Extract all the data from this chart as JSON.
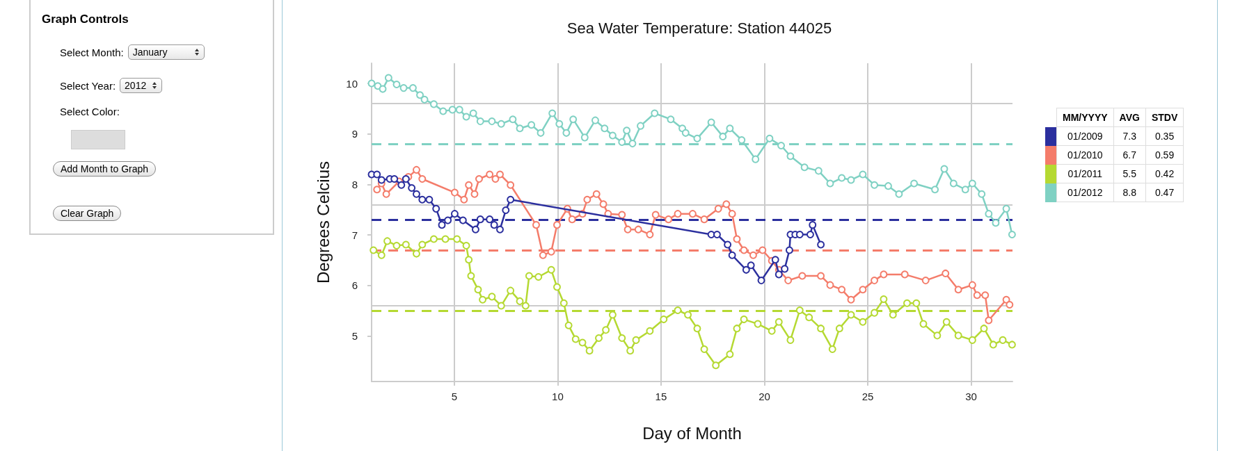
{
  "chart_data": [
    {
      "type": "line",
      "title": "Sea Water Temperature: Station 44025",
      "xlabel": "Day of Month",
      "ylabel": "Degrees Celcius",
      "legend_title": "MM/YYYY",
      "xlim": [
        1,
        32
      ],
      "xticks": [
        5,
        10,
        15,
        20,
        25,
        30
      ],
      "ylim": [
        4.1,
        10.4
      ],
      "yticks": [
        5,
        6,
        7,
        8,
        9,
        10
      ],
      "grid": "x",
      "legend": "right",
      "marker": "circle",
      "line_style": "solid",
      "series": [
        {
          "name": "01/2009",
          "color": "#2b2f9e",
          "x": [
            1.0,
            1.26,
            1.48,
            1.88,
            2.1,
            2.44,
            2.66,
            2.94,
            3.17,
            3.45,
            3.79,
            4.12,
            4.4,
            4.69,
            5.02,
            5.42,
            6.03,
            6.26,
            6.71,
            6.93,
            7.21,
            7.49,
            7.72,
            17.43,
            17.71,
            18.22,
            18.44,
            19.12,
            19.35,
            19.85,
            20.53,
            20.7,
            20.98,
            21.21,
            21.26,
            21.49,
            21.71,
            22.22,
            22.33,
            22.73
          ],
          "values": [
            8.2,
            8.2,
            8.09,
            8.11,
            8.11,
            7.99,
            8.11,
            7.93,
            7.81,
            7.7,
            7.7,
            7.52,
            7.2,
            7.29,
            7.42,
            7.29,
            7.11,
            7.31,
            7.31,
            7.2,
            7.11,
            7.49,
            7.7,
            7.01,
            7.01,
            6.81,
            6.6,
            6.31,
            6.4,
            6.1,
            6.51,
            6.22,
            6.33,
            6.7,
            7.01,
            7.01,
            7.01,
            7.01,
            7.2,
            6.81
          ]
        },
        {
          "name": "01/2010",
          "color": "#f47c6a",
          "x": [
            1.26,
            1.48,
            1.71,
            2.33,
            2.78,
            3.17,
            3.45,
            5.02,
            5.47,
            5.7,
            5.98,
            6.2,
            6.71,
            6.99,
            7.21,
            7.72,
            8.96,
            9.29,
            9.69,
            9.97,
            10.47,
            10.7,
            11.2,
            11.43,
            11.88,
            12.21,
            12.44,
            13.11,
            13.39,
            13.9,
            14.46,
            14.74,
            15.36,
            15.81,
            16.53,
            17.09,
            17.77,
            18.16,
            18.44,
            18.67,
            19.01,
            19.46,
            19.91,
            20.36,
            20.7,
            21.15,
            21.83,
            22.73,
            23.18,
            23.74,
            24.19,
            24.76,
            25.32,
            25.77,
            26.79,
            27.8,
            28.76,
            29.38,
            30.06,
            30.29,
            30.68,
            30.85,
            31.7,
            31.86
          ],
          "values": [
            7.9,
            8.02,
            7.81,
            8.06,
            8.15,
            8.29,
            8.11,
            7.84,
            7.7,
            7.99,
            7.81,
            8.11,
            8.2,
            8.11,
            8.2,
            7.99,
            7.2,
            6.6,
            6.67,
            7.2,
            7.52,
            7.31,
            7.42,
            7.7,
            7.81,
            7.61,
            7.42,
            7.4,
            7.11,
            7.11,
            7.01,
            7.4,
            7.31,
            7.42,
            7.42,
            7.31,
            7.52,
            7.61,
            7.42,
            6.92,
            6.7,
            6.6,
            6.7,
            6.49,
            6.31,
            6.1,
            6.19,
            6.19,
            6.01,
            5.92,
            5.72,
            5.92,
            6.1,
            6.22,
            6.22,
            6.1,
            6.24,
            5.92,
            6.01,
            5.81,
            5.81,
            5.31,
            5.72,
            5.62
          ]
        },
        {
          "name": "01/2011",
          "color": "#b5d932",
          "x": [
            1.09,
            1.48,
            1.76,
            2.21,
            2.66,
            3.17,
            3.45,
            4.01,
            4.57,
            5.13,
            5.58,
            5.7,
            5.81,
            6.15,
            6.37,
            6.82,
            7.27,
            7.72,
            8.17,
            8.45,
            8.62,
            9.07,
            9.69,
            9.97,
            10.3,
            10.53,
            10.87,
            11.2,
            11.54,
            11.99,
            12.33,
            12.66,
            13.11,
            13.51,
            13.79,
            14.46,
            15.13,
            15.81,
            16.3,
            16.75,
            17.09,
            17.65,
            18.33,
            18.67,
            19.01,
            19.68,
            20.36,
            20.7,
            21.26,
            21.71,
            22.16,
            22.73,
            23.29,
            23.63,
            24.19,
            24.76,
            25.32,
            25.77,
            26.22,
            26.9,
            27.35,
            27.69,
            28.36,
            28.81,
            29.38,
            30.06,
            30.62,
            31.07,
            31.53,
            31.98
          ],
          "values": [
            6.7,
            6.6,
            6.88,
            6.79,
            6.81,
            6.63,
            6.81,
            6.92,
            6.92,
            6.92,
            6.79,
            6.51,
            6.19,
            5.92,
            5.72,
            5.78,
            5.6,
            5.9,
            5.69,
            5.6,
            6.19,
            6.17,
            6.31,
            5.97,
            5.65,
            5.21,
            4.94,
            4.87,
            4.71,
            4.96,
            5.12,
            5.42,
            4.96,
            4.71,
            4.92,
            5.1,
            5.33,
            5.51,
            5.42,
            5.15,
            4.74,
            4.42,
            4.64,
            5.15,
            5.33,
            5.24,
            5.1,
            5.28,
            4.92,
            5.51,
            5.37,
            5.15,
            4.74,
            5.15,
            5.42,
            5.28,
            5.46,
            5.73,
            5.42,
            5.65,
            5.65,
            5.24,
            5.01,
            5.28,
            5.01,
            4.92,
            5.15,
            4.83,
            4.92,
            4.83
          ]
        },
        {
          "name": "01/2012",
          "color": "#7fd1c3",
          "x": [
            1.0,
            1.3,
            1.54,
            1.82,
            2.21,
            2.55,
            3.0,
            3.34,
            3.56,
            4.01,
            4.46,
            4.91,
            5.25,
            5.58,
            5.92,
            6.26,
            6.82,
            7.27,
            7.83,
            8.17,
            8.73,
            9.18,
            9.74,
            10.08,
            10.42,
            10.75,
            11.31,
            11.82,
            12.27,
            12.66,
            13.11,
            13.34,
            13.62,
            14.01,
            14.69,
            15.47,
            16.03,
            16.19,
            16.75,
            17.43,
            17.99,
            18.33,
            18.9,
            19.57,
            20.25,
            20.81,
            21.26,
            21.94,
            22.62,
            23.18,
            23.74,
            24.19,
            24.76,
            25.32,
            25.99,
            26.51,
            27.24,
            28.25,
            28.7,
            29.15,
            29.72,
            30.06,
            30.51,
            30.85,
            31.19,
            31.7,
            31.98
          ],
          "values": [
            10.0,
            9.95,
            9.89,
            10.11,
            9.98,
            9.91,
            9.91,
            9.77,
            9.68,
            9.59,
            9.45,
            9.48,
            9.48,
            9.34,
            9.41,
            9.25,
            9.25,
            9.2,
            9.29,
            9.11,
            9.18,
            9.02,
            9.41,
            9.2,
            9.02,
            9.29,
            8.93,
            9.27,
            9.11,
            8.97,
            8.84,
            9.07,
            8.81,
            9.16,
            9.41,
            9.29,
            9.11,
            9.02,
            8.91,
            9.23,
            8.95,
            9.11,
            8.88,
            8.5,
            8.91,
            8.77,
            8.56,
            8.34,
            8.27,
            8.02,
            8.13,
            8.09,
            8.2,
            7.99,
            7.97,
            7.81,
            8.02,
            7.9,
            8.31,
            8.02,
            7.9,
            8.02,
            7.81,
            7.42,
            7.24,
            7.52,
            7.01
          ]
        }
      ],
      "ref_lines": [
        {
          "axis": "y",
          "value": 7.3,
          "color": "#2b2f9e",
          "line_style": "dashed"
        },
        {
          "axis": "y",
          "value": 6.7,
          "color": "#f47c6a",
          "line_style": "dashed"
        },
        {
          "axis": "y",
          "value": 5.5,
          "color": "#b5d932",
          "line_style": "dashed"
        },
        {
          "axis": "y",
          "value": 8.8,
          "color": "#7fd1c3",
          "line_style": "dashed"
        },
        {
          "axis": "y",
          "value": 9.6,
          "color": "#cccccc",
          "line_style": "solid"
        },
        {
          "axis": "y",
          "value": 7.6,
          "color": "#cccccc",
          "line_style": "solid"
        },
        {
          "axis": "y",
          "value": 5.6,
          "color": "#cccccc",
          "line_style": "solid"
        }
      ],
      "annotations": [
        "AVG",
        "STDV",
        "7.3",
        "0.35",
        "6.7",
        "0.59",
        "5.5",
        "0.42",
        "8.8",
        "0.47"
      ]
    },
    {
      "type": "other",
      "title": "Graph Controls",
      "annotations": [
        "Select Month:",
        "January",
        "Select Year:",
        "2012",
        "Select Color:",
        "Add Month to Graph",
        "Clear Graph"
      ]
    }
  ]
}
